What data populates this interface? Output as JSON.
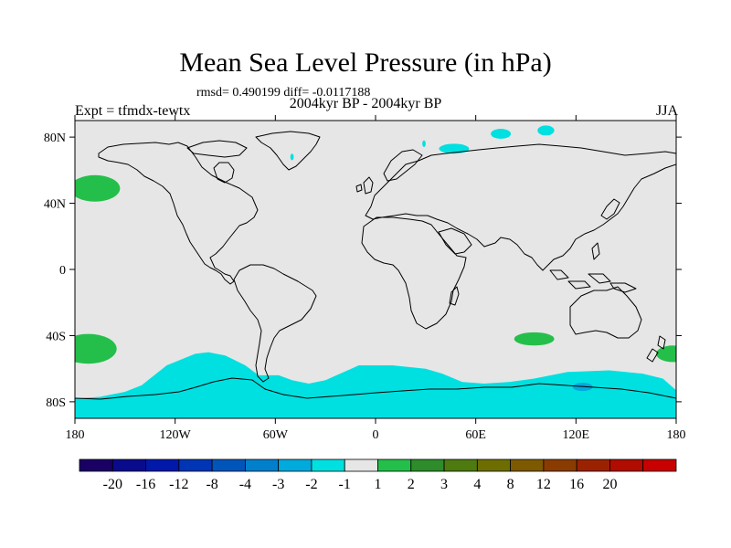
{
  "title": "Mean Sea Level Pressure (in hPa)",
  "stats": "rmsd= 0.490199 diff= -0.0117188",
  "period": "2004kyr BP - 2004kyr BP",
  "experiment": "Expt = tfmdx-tewtx",
  "season": "JJA",
  "map": {
    "projection": "cylindrical-equidistant",
    "lon_range": [
      -180,
      180
    ],
    "lat_range": [
      -90,
      90
    ],
    "background_color": "#e6e6e6",
    "coastline_color": "#000000",
    "lat_ticks": [
      {
        "value": 80,
        "label": "80N"
      },
      {
        "value": 40,
        "label": "40N"
      },
      {
        "value": 0,
        "label": "0"
      },
      {
        "value": -40,
        "label": "40S"
      },
      {
        "value": -80,
        "label": "80S"
      }
    ],
    "lon_ticks": [
      {
        "value": -180,
        "label": "180"
      },
      {
        "value": -120,
        "label": "120W"
      },
      {
        "value": -60,
        "label": "60W"
      },
      {
        "value": 0,
        "label": "0"
      },
      {
        "value": 60,
        "label": "60E"
      },
      {
        "value": 120,
        "label": "120E"
      },
      {
        "value": 180,
        "label": "180"
      }
    ],
    "anomaly_regions": [
      {
        "name": "north-pacific-positive",
        "bin": "1 to 2",
        "color": "#24bf4a",
        "lon_center": -168,
        "lat_center": 49,
        "lon_radius": 15,
        "lat_radius": 8
      },
      {
        "name": "south-pacific-positive",
        "bin": "1 to 2",
        "color": "#24bf4a",
        "lon_center": -172,
        "lat_center": -48,
        "lon_radius": 17,
        "lat_radius": 9
      },
      {
        "name": "south-indian-positive",
        "bin": "1 to 2",
        "color": "#24bf4a",
        "lon_center": 95,
        "lat_center": -42,
        "lon_radius": 12,
        "lat_radius": 4
      },
      {
        "name": "south-pacific-east-positive",
        "bin": "1 to 2",
        "color": "#24bf4a",
        "lon_center": 178,
        "lat_center": -51,
        "lon_radius": 10,
        "lat_radius": 5
      },
      {
        "name": "barents-negative",
        "bin": "-2 to -1",
        "color": "#00e0e0",
        "lon_center": 47,
        "lat_center": 73,
        "lon_radius": 9,
        "lat_radius": 3
      },
      {
        "name": "kara-negative",
        "bin": "-2 to -1",
        "color": "#00e0e0",
        "lon_center": 75,
        "lat_center": 82,
        "lon_radius": 6,
        "lat_radius": 3
      },
      {
        "name": "arctic-negative",
        "bin": "-2 to -1",
        "color": "#00e0e0",
        "lon_center": 102,
        "lat_center": 84,
        "lon_radius": 5,
        "lat_radius": 3
      },
      {
        "name": "greenland-negative",
        "bin": "-2 to -1",
        "color": "#00e0e0",
        "lon_center": -50,
        "lat_center": 68,
        "lon_radius": 1,
        "lat_radius": 2
      },
      {
        "name": "svalbard-negative",
        "bin": "-2 to -1",
        "color": "#00e0e0",
        "lon_center": 29,
        "lat_center": 76,
        "lon_radius": 1,
        "lat_radius": 2
      },
      {
        "name": "antarctic-negative",
        "bin": "-2 to -1",
        "color": "#00e0e0",
        "polygon_lonlat": [
          [
            -180,
            -78
          ],
          [
            -165,
            -77
          ],
          [
            -150,
            -74
          ],
          [
            -140,
            -70
          ],
          [
            -125,
            -58
          ],
          [
            -108,
            -51
          ],
          [
            -100,
            -50
          ],
          [
            -90,
            -52
          ],
          [
            -78,
            -58
          ],
          [
            -70,
            -64
          ],
          [
            -58,
            -64
          ],
          [
            -50,
            -67
          ],
          [
            -40,
            -69
          ],
          [
            -30,
            -67
          ],
          [
            -10,
            -58
          ],
          [
            10,
            -58
          ],
          [
            30,
            -60
          ],
          [
            40,
            -63
          ],
          [
            52,
            -68
          ],
          [
            65,
            -69
          ],
          [
            80,
            -68
          ],
          [
            95,
            -66
          ],
          [
            115,
            -62
          ],
          [
            140,
            -61
          ],
          [
            160,
            -63
          ],
          [
            172,
            -66
          ],
          [
            180,
            -73
          ],
          [
            180,
            -90
          ],
          [
            -180,
            -90
          ]
        ]
      },
      {
        "name": "antarctic-strong-negative",
        "bin": "-3 to -2",
        "color": "#00aadd",
        "lon_center": 124,
        "lat_center": -71,
        "lon_radius": 6,
        "lat_radius": 2.5
      }
    ]
  },
  "colorbar": {
    "colors": [
      "#1a0064",
      "#0a0a8c",
      "#0019aa",
      "#0035b5",
      "#0055bb",
      "#0080cc",
      "#00aadd",
      "#00e0e0",
      "#e6e6e6",
      "#24bf4a",
      "#2e8c2a",
      "#4e7a10",
      "#6e6e00",
      "#7d5a00",
      "#8a3c00",
      "#9b2200",
      "#b00c00",
      "#c80000"
    ],
    "labels": [
      "-20",
      "-16",
      "-12",
      "-8",
      "-4",
      "-3",
      "-2",
      "-1",
      "1",
      "2",
      "3",
      "4",
      "8",
      "12",
      "16",
      "20"
    ]
  }
}
